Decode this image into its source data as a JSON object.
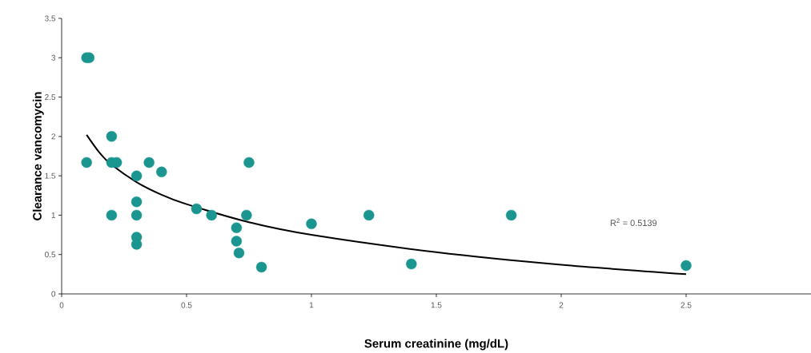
{
  "chart_data": {
    "type": "scatter",
    "xlabel": "Serum creatinine (mg/dL)",
    "ylabel": "Clearance vancomycin",
    "xlim": [
      0,
      3
    ],
    "xticks": [
      0,
      0.5,
      1,
      1.5,
      2,
      2.5
    ],
    "ylim": [
      0,
      3.5
    ],
    "yticks": [
      0,
      0.5,
      1,
      1.5,
      2,
      2.5,
      3,
      3.5
    ],
    "grid": false,
    "legend": false,
    "annotations": [
      "R$^{2}$ = 0.5139"
    ],
    "series": [
      {
        "color": "#1a9590",
        "marker": "circle",
        "x": [
          0.1,
          0.11,
          0.1,
          0.2,
          0.2,
          0.22,
          0.2,
          0.3,
          0.3,
          0.3,
          0.3,
          0.3,
          0.35,
          0.4,
          0.54,
          0.6,
          0.7,
          0.7,
          0.71,
          0.74,
          0.75,
          0.8,
          1.0,
          1.23,
          1.4,
          1.8,
          2.5
        ],
        "values": [
          3.0,
          3.0,
          1.67,
          2.0,
          1.67,
          1.67,
          1.0,
          1.5,
          1.17,
          1.0,
          0.72,
          0.63,
          1.67,
          1.55,
          1.08,
          1.0,
          0.84,
          0.67,
          0.52,
          1.0,
          1.67,
          0.34,
          0.89,
          1.0,
          0.38,
          1.0,
          0.36
        ]
      },
      {
        "type": "line",
        "color": "#000000",
        "marker": "none",
        "x": [
          0.1,
          0.15,
          0.2,
          0.3,
          0.4,
          0.5,
          0.75,
          1,
          1.5,
          2,
          2.5
        ],
        "values": [
          2.02,
          1.8,
          1.64,
          1.42,
          1.26,
          1.14,
          0.91,
          0.75,
          0.53,
          0.37,
          0.25
        ]
      }
    ]
  }
}
